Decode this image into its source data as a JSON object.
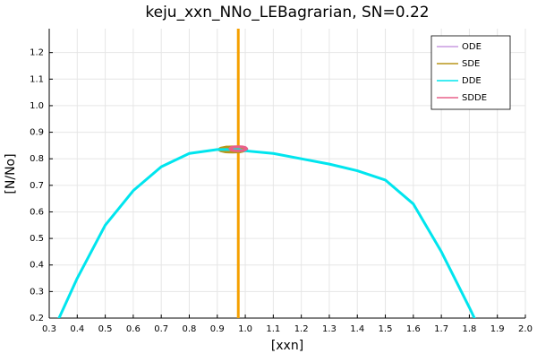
{
  "chart_data": {
    "type": "line",
    "title": "keju_xxn_NNo_LEBagrarian, SN=0.22",
    "x_label": "[xxn]",
    "y_label": "[N/No]",
    "xlim": [
      0.3,
      2.0
    ],
    "ylim": [
      0.2,
      1.29
    ],
    "xticks": [
      0.3,
      0.4,
      0.5,
      0.6,
      0.7,
      0.8,
      0.9,
      {
        "value": 1,
        "label": "1.0"
      },
      1.1,
      1.2,
      1.3,
      1.4,
      1.5,
      1.6,
      1.7,
      1.8,
      1.9,
      {
        "value": 2,
        "label": "2.0"
      }
    ],
    "yticks": [
      0.2,
      0.3,
      0.4,
      0.5,
      0.6,
      0.7,
      0.8,
      0.9,
      {
        "value": 1,
        "label": "1.0"
      },
      1.1,
      1.2
    ],
    "grid": true,
    "legend": "top-right",
    "vline": {
      "x": 0.975,
      "color": "#f5a000"
    },
    "series": [
      {
        "name": "ODE",
        "color": "#c99be0",
        "x": [
          0.975
        ],
        "values": [
          0.836
        ]
      },
      {
        "name": "SDE",
        "color": "#b8961a",
        "x": [
          1.005,
          0.998,
          0.98,
          0.955,
          0.93,
          0.912,
          0.905,
          0.912,
          0.93,
          0.955,
          0.98,
          0.998,
          1.005
        ],
        "values": [
          0.835,
          0.84,
          0.844,
          0.845,
          0.844,
          0.84,
          0.835,
          0.83,
          0.826,
          0.825,
          0.826,
          0.83,
          0.835
        ]
      },
      {
        "name": "DDE",
        "color": "#00e5ee",
        "x": [
          0.335,
          0.4,
          0.5,
          0.6,
          0.7,
          0.8,
          0.9,
          0.975,
          1.0,
          1.1,
          1.2,
          1.3,
          1.4,
          1.5,
          1.6,
          1.7,
          1.8,
          1.818
        ],
        "values": [
          0.2,
          0.35,
          0.55,
          0.68,
          0.77,
          0.82,
          0.835,
          0.835,
          0.83,
          0.82,
          0.8,
          0.78,
          0.755,
          0.72,
          0.63,
          0.45,
          0.24,
          0.2
        ]
      },
      {
        "name": "SDDE",
        "color": "#e8608a",
        "x": [
          1.005,
          1.001,
          0.99,
          0.975,
          0.96,
          0.949,
          0.945,
          0.949,
          0.96,
          0.975,
          0.99,
          1.001,
          1.005
        ],
        "values": [
          0.838,
          0.842,
          0.845,
          0.846,
          0.845,
          0.842,
          0.838,
          0.834,
          0.831,
          0.83,
          0.831,
          0.834,
          0.838
        ]
      }
    ]
  }
}
